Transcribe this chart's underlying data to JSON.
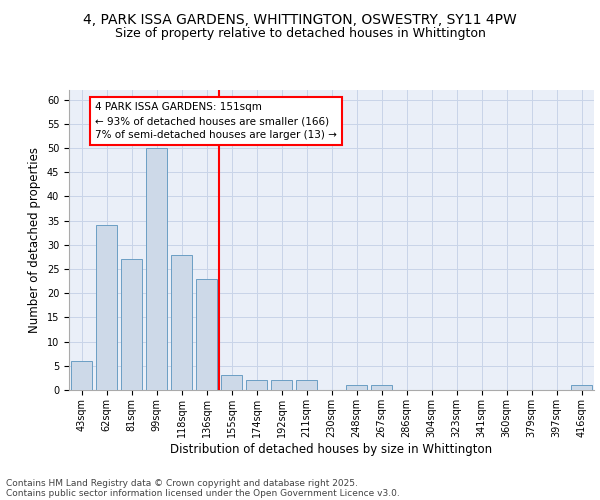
{
  "title_line1": "4, PARK ISSA GARDENS, WHITTINGTON, OSWESTRY, SY11 4PW",
  "title_line2": "Size of property relative to detached houses in Whittington",
  "xlabel": "Distribution of detached houses by size in Whittington",
  "ylabel": "Number of detached properties",
  "categories": [
    "43sqm",
    "62sqm",
    "81sqm",
    "99sqm",
    "118sqm",
    "136sqm",
    "155sqm",
    "174sqm",
    "192sqm",
    "211sqm",
    "230sqm",
    "248sqm",
    "267sqm",
    "286sqm",
    "304sqm",
    "323sqm",
    "341sqm",
    "360sqm",
    "379sqm",
    "397sqm",
    "416sqm"
  ],
  "values": [
    6,
    34,
    27,
    50,
    28,
    23,
    3,
    2,
    2,
    2,
    0,
    1,
    1,
    0,
    0,
    0,
    0,
    0,
    0,
    0,
    1
  ],
  "bar_color": "#cdd9e8",
  "bar_edgecolor": "#6b9ec4",
  "redline_color": "red",
  "annotation_text": "4 PARK ISSA GARDENS: 151sqm\n← 93% of detached houses are smaller (166)\n7% of semi-detached houses are larger (13) →",
  "annotation_box_edgecolor": "red",
  "ylim": [
    0,
    62
  ],
  "yticks": [
    0,
    5,
    10,
    15,
    20,
    25,
    30,
    35,
    40,
    45,
    50,
    55,
    60
  ],
  "grid_color": "#c8d4e8",
  "background_color": "#eaeff8",
  "footer_line1": "Contains HM Land Registry data © Crown copyright and database right 2025.",
  "footer_line2": "Contains public sector information licensed under the Open Government Licence v3.0.",
  "title_fontsize": 10,
  "subtitle_fontsize": 9,
  "axis_label_fontsize": 8.5,
  "tick_fontsize": 7,
  "annotation_fontsize": 7.5,
  "footer_fontsize": 6.5
}
